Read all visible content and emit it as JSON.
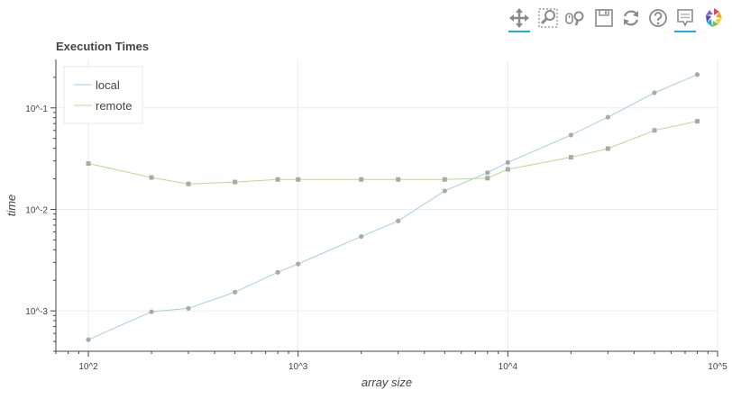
{
  "toolbar": {
    "tools": [
      {
        "name": "pan-tool",
        "icon": "pan-icon",
        "active": true
      },
      {
        "name": "box-zoom-tool",
        "icon": "box-zoom-icon",
        "active": false
      },
      {
        "name": "wheel-zoom-tool",
        "icon": "wheel-zoom-icon",
        "active": false
      },
      {
        "name": "save-tool",
        "icon": "save-icon",
        "active": false
      },
      {
        "name": "reset-tool",
        "icon": "reset-icon",
        "active": false
      },
      {
        "name": "help-tool",
        "icon": "help-icon",
        "active": false
      },
      {
        "name": "hover-tool",
        "icon": "hover-icon",
        "active": true
      },
      {
        "name": "bokeh-logo",
        "icon": "bokeh-logo-icon",
        "active": false
      }
    ],
    "accent_color": "#26aae1"
  },
  "chart_data": {
    "type": "line",
    "title": "Execution Times",
    "xlabel": "array size",
    "ylabel": "time",
    "x_scale": "log",
    "y_scale": "log",
    "xlim": [
      70,
      100000
    ],
    "ylim": [
      0.0004,
      0.3
    ],
    "x_ticks": [
      {
        "value": 100,
        "label": "10^2"
      },
      {
        "value": 1000,
        "label": "10^3"
      },
      {
        "value": 10000,
        "label": "10^4"
      },
      {
        "value": 100000,
        "label": "10^5"
      }
    ],
    "y_ticks": [
      {
        "value": 0.001,
        "label": "10^-3"
      },
      {
        "value": 0.01,
        "label": "10^-2"
      },
      {
        "value": 0.1,
        "label": "10^-1"
      }
    ],
    "grid": true,
    "legend_position": "top-left",
    "x": [
      100,
      200,
      300,
      500,
      800,
      1000,
      2000,
      3000,
      5000,
      8000,
      10000,
      20000,
      30000,
      50000,
      80000
    ],
    "series": [
      {
        "name": "local",
        "color": "#a6cee3",
        "marker": "circle",
        "values": [
          0.00052,
          0.00098,
          0.00106,
          0.00153,
          0.0024,
          0.0029,
          0.0054,
          0.0077,
          0.0152,
          0.023,
          0.029,
          0.054,
          0.081,
          0.141,
          0.213
        ]
      },
      {
        "name": "remote",
        "color": "#b2df8a",
        "marker": "square",
        "values": [
          0.0283,
          0.0206,
          0.0178,
          0.0186,
          0.0197,
          0.0197,
          0.0197,
          0.0197,
          0.0197,
          0.0203,
          0.0248,
          0.0326,
          0.0397,
          0.06,
          0.0738
        ]
      }
    ]
  }
}
